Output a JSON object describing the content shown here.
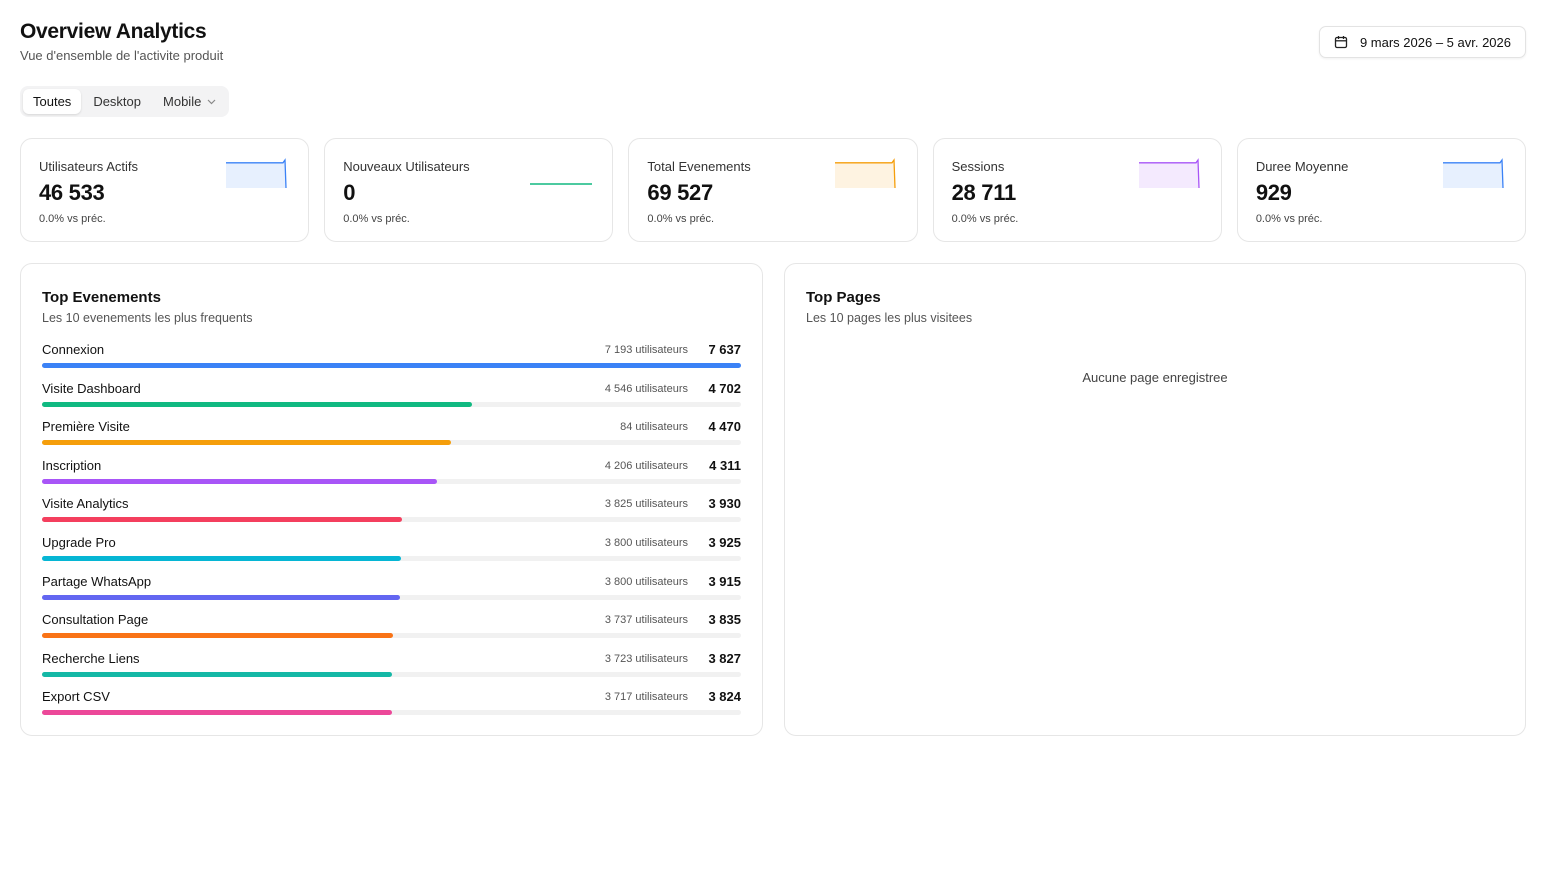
{
  "header": {
    "title": "Overview Analytics",
    "subtitle": "Vue d'ensemble de l'activite produit"
  },
  "date_range": {
    "icon": "calendar-icon",
    "label": "9 mars 2026 – 5 avr. 2026"
  },
  "device_filter": {
    "options": [
      "Toutes",
      "Desktop",
      "Mobile"
    ],
    "selected": "Toutes"
  },
  "kpis": [
    {
      "label": "Utilisateurs Actifs",
      "value": "46 533",
      "delta": "0.0% vs préc.",
      "color": "#3b82f6",
      "spark": "flat-drop"
    },
    {
      "label": "Nouveaux Utilisateurs",
      "value": "0",
      "delta": "0.0% vs préc.",
      "color": "#10b981",
      "spark": "flat"
    },
    {
      "label": "Total Evenements",
      "value": "69 527",
      "delta": "0.0% vs préc.",
      "color": "#f59e0b",
      "spark": "flat-drop"
    },
    {
      "label": "Sessions",
      "value": "28 711",
      "delta": "0.0% vs préc.",
      "color": "#a855f7",
      "spark": "flat-drop"
    },
    {
      "label": "Duree Moyenne",
      "value": "929",
      "delta": "0.0% vs préc.",
      "color": "#3b82f6",
      "spark": "flat-drop"
    }
  ],
  "top_events": {
    "title": "Top Evenements",
    "subtitle": "Les 10 evenements les plus frequents",
    "rows": [
      {
        "name": "Connexion",
        "users": "7 193 utilisateurs",
        "count": "7 637",
        "value": 7637,
        "color": "#3b82f6"
      },
      {
        "name": "Visite Dashboard",
        "users": "4 546 utilisateurs",
        "count": "4 702",
        "value": 4702,
        "color": "#10b981"
      },
      {
        "name": "Première Visite",
        "users": "84 utilisateurs",
        "count": "4 470",
        "value": 4470,
        "color": "#f59e0b"
      },
      {
        "name": "Inscription",
        "users": "4 206 utilisateurs",
        "count": "4 311",
        "value": 4311,
        "color": "#a855f7"
      },
      {
        "name": "Visite Analytics",
        "users": "3 825 utilisateurs",
        "count": "3 930",
        "value": 3930,
        "color": "#f43f5e"
      },
      {
        "name": "Upgrade Pro",
        "users": "3 800 utilisateurs",
        "count": "3 925",
        "value": 3925,
        "color": "#06b6d4"
      },
      {
        "name": "Partage WhatsApp",
        "users": "3 800 utilisateurs",
        "count": "3 915",
        "value": 3915,
        "color": "#6366f1"
      },
      {
        "name": "Consultation Page",
        "users": "3 737 utilisateurs",
        "count": "3 835",
        "value": 3835,
        "color": "#f97316"
      },
      {
        "name": "Recherche Liens",
        "users": "3 723 utilisateurs",
        "count": "3 827",
        "value": 3827,
        "color": "#14b8a6"
      },
      {
        "name": "Export CSV",
        "users": "3 717 utilisateurs",
        "count": "3 824",
        "value": 3824,
        "color": "#ec4899"
      }
    ]
  },
  "top_pages": {
    "title": "Top Pages",
    "subtitle": "Les 10 pages les plus visitees",
    "empty_text": "Aucune page enregistree"
  }
}
